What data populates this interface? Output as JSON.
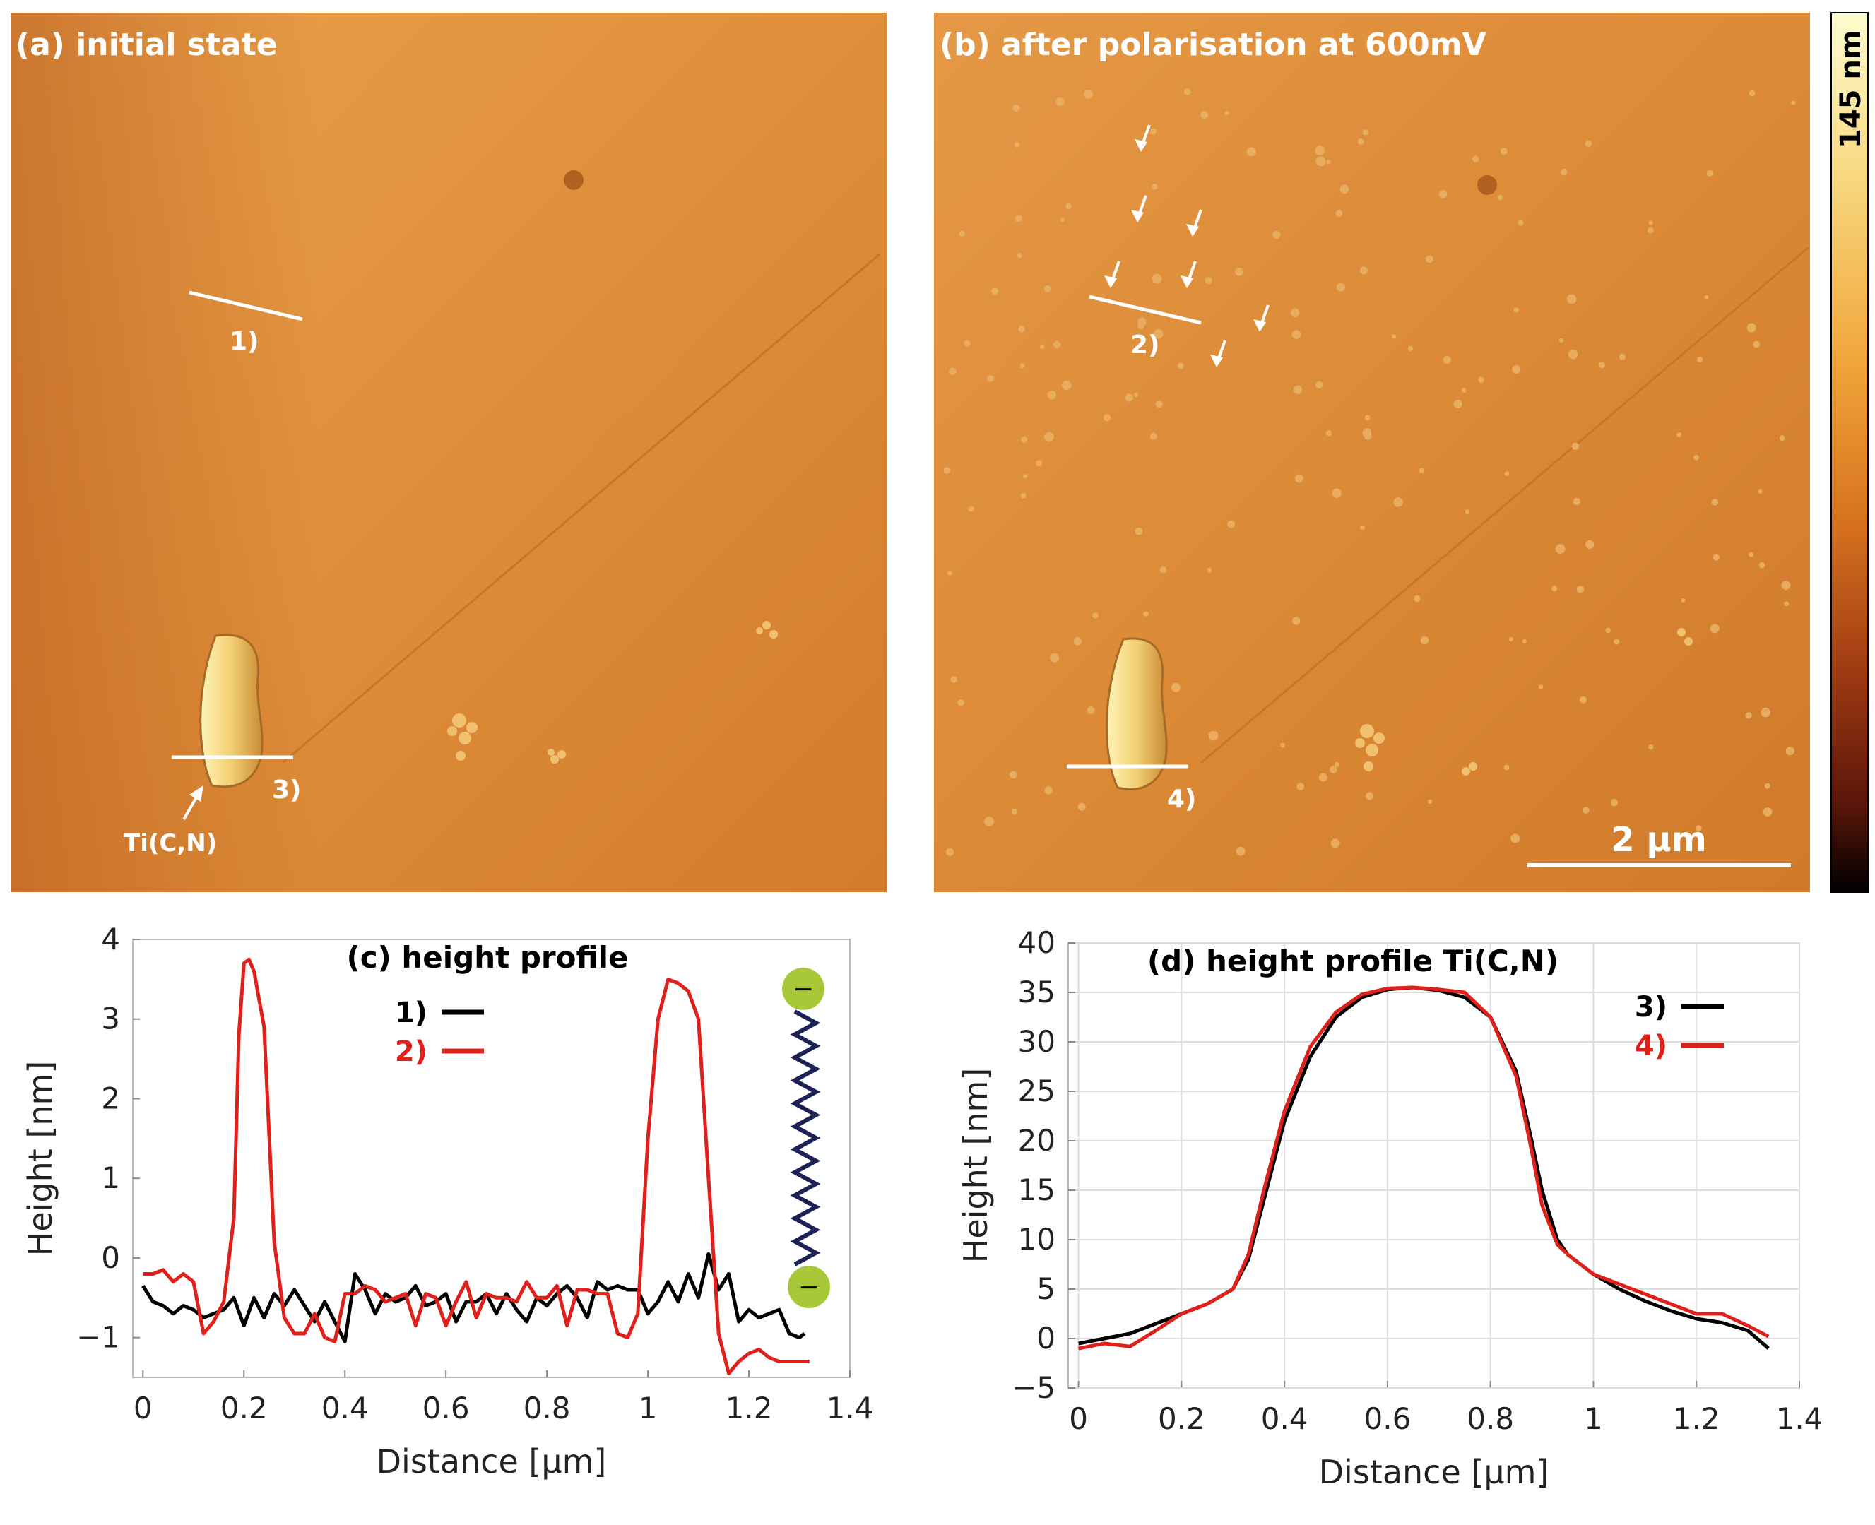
{
  "figure": {
    "colors": {
      "afm_light": "#e59b45",
      "afm_mid": "#d98a34",
      "afm_dark": "#b6601c",
      "profile_1": "#000000",
      "profile_2": "#e0201b",
      "molecule_ball": "#a8c83a",
      "molecule_chain": "#1c2255",
      "scale_line": "#ffffff"
    }
  },
  "afm": {
    "panel_a": {
      "title": "(a) initial state",
      "line_labels": [
        "1)",
        "3)"
      ],
      "particle_label": "Ti(C,N)"
    },
    "panel_b": {
      "title": "(b) after polarisation at 600mV",
      "line_labels": [
        "2)",
        "4)"
      ],
      "scale_bar": "2 µm"
    },
    "colorbar": {
      "label": "145 nm",
      "stops": [
        "#fdfcd0",
        "#f7d57a",
        "#f0a43a",
        "#d6721e",
        "#9e3a12",
        "#5a160a",
        "#000000"
      ]
    }
  },
  "chart_data": [
    {
      "type": "line",
      "title": "(c) height profile",
      "xlabel": "Distance [µm]",
      "ylabel": "Height [nm]",
      "xlim": [
        -0.02,
        1.4
      ],
      "ylim": [
        -1.5,
        4.0
      ],
      "xticks": [
        0,
        0.2,
        0.4,
        0.6,
        0.8,
        1,
        1.2,
        1.4
      ],
      "yticks": [
        -1,
        0,
        1,
        2,
        3,
        4
      ],
      "xtick_labels": [
        "0",
        "0.2",
        "0.4",
        "0.6",
        "0.8",
        "1",
        "1.2",
        "1.4"
      ],
      "ytick_labels": [
        "−1",
        "0",
        "1",
        "2",
        "3",
        "4"
      ],
      "legend": "top-right",
      "series": [
        {
          "name": "1)",
          "color": "#000000",
          "x": [
            0,
            0.02,
            0.04,
            0.06,
            0.08,
            0.1,
            0.12,
            0.14,
            0.16,
            0.18,
            0.2,
            0.22,
            0.24,
            0.26,
            0.28,
            0.3,
            0.32,
            0.34,
            0.36,
            0.38,
            0.4,
            0.42,
            0.44,
            0.46,
            0.48,
            0.5,
            0.52,
            0.54,
            0.56,
            0.58,
            0.6,
            0.62,
            0.64,
            0.66,
            0.68,
            0.7,
            0.72,
            0.74,
            0.76,
            0.78,
            0.8,
            0.82,
            0.84,
            0.86,
            0.88,
            0.9,
            0.92,
            0.94,
            0.96,
            0.98,
            1.0,
            1.02,
            1.04,
            1.06,
            1.08,
            1.1,
            1.12,
            1.14,
            1.16,
            1.18,
            1.2,
            1.22,
            1.24,
            1.26,
            1.28,
            1.3,
            1.31
          ],
          "y": [
            -0.35,
            -0.55,
            -0.6,
            -0.7,
            -0.6,
            -0.65,
            -0.75,
            -0.7,
            -0.65,
            -0.5,
            -0.85,
            -0.5,
            -0.75,
            -0.45,
            -0.6,
            -0.4,
            -0.6,
            -0.8,
            -0.55,
            -0.8,
            -1.05,
            -0.2,
            -0.4,
            -0.7,
            -0.45,
            -0.55,
            -0.5,
            -0.35,
            -0.6,
            -0.55,
            -0.45,
            -0.8,
            -0.55,
            -0.55,
            -0.45,
            -0.7,
            -0.45,
            -0.65,
            -0.8,
            -0.5,
            -0.6,
            -0.45,
            -0.35,
            -0.5,
            -0.75,
            -0.3,
            -0.4,
            -0.35,
            -0.4,
            -0.4,
            -0.7,
            -0.55,
            -0.3,
            -0.55,
            -0.2,
            -0.5,
            0.05,
            -0.4,
            -0.2,
            -0.8,
            -0.65,
            -0.75,
            -0.7,
            -0.65,
            -0.95,
            -1.0,
            -0.95
          ]
        },
        {
          "name": "2)",
          "color": "#e0201b",
          "x": [
            0,
            0.02,
            0.04,
            0.06,
            0.08,
            0.1,
            0.12,
            0.14,
            0.16,
            0.18,
            0.19,
            0.2,
            0.21,
            0.22,
            0.24,
            0.26,
            0.28,
            0.3,
            0.32,
            0.34,
            0.36,
            0.38,
            0.4,
            0.42,
            0.44,
            0.46,
            0.48,
            0.5,
            0.52,
            0.54,
            0.56,
            0.58,
            0.6,
            0.62,
            0.64,
            0.66,
            0.68,
            0.7,
            0.72,
            0.74,
            0.76,
            0.78,
            0.8,
            0.82,
            0.84,
            0.86,
            0.88,
            0.9,
            0.92,
            0.94,
            0.96,
            0.98,
            1.0,
            1.02,
            1.04,
            1.06,
            1.08,
            1.1,
            1.12,
            1.14,
            1.16,
            1.18,
            1.2,
            1.22,
            1.24,
            1.26,
            1.28,
            1.3,
            1.32
          ],
          "y": [
            -0.2,
            -0.2,
            -0.15,
            -0.3,
            -0.2,
            -0.3,
            -0.95,
            -0.8,
            -0.55,
            0.5,
            2.8,
            3.7,
            3.75,
            3.6,
            2.9,
            0.2,
            -0.75,
            -0.95,
            -0.95,
            -0.7,
            -1.0,
            -1.05,
            -0.45,
            -0.45,
            -0.35,
            -0.4,
            -0.55,
            -0.5,
            -0.45,
            -0.85,
            -0.45,
            -0.5,
            -0.85,
            -0.55,
            -0.3,
            -0.75,
            -0.45,
            -0.5,
            -0.5,
            -0.55,
            -0.3,
            -0.5,
            -0.5,
            -0.35,
            -0.85,
            -0.4,
            -0.4,
            -0.45,
            -0.45,
            -0.95,
            -1.0,
            -0.7,
            1.5,
            3.0,
            3.5,
            3.45,
            3.35,
            3.0,
            1.0,
            -0.95,
            -1.45,
            -1.3,
            -1.2,
            -1.15,
            -1.25,
            -1.3,
            -1.3,
            -1.3,
            -1.3
          ]
        }
      ]
    },
    {
      "type": "line",
      "title": "(d) height profile Ti(C,N)",
      "xlabel": "Distance [µm]",
      "ylabel": "Height [nm]",
      "xlim": [
        -0.02,
        1.4
      ],
      "ylim": [
        -5,
        40
      ],
      "xticks": [
        0,
        0.2,
        0.4,
        0.6,
        0.8,
        1,
        1.2,
        1.4
      ],
      "yticks": [
        -5,
        0,
        5,
        10,
        15,
        20,
        25,
        30,
        35,
        40
      ],
      "xtick_labels": [
        "0",
        "0.2",
        "0.4",
        "0.6",
        "0.8",
        "1",
        "1.2",
        "1.4"
      ],
      "ytick_labels": [
        "−5",
        "0",
        "5",
        "10",
        "15",
        "20",
        "25",
        "30",
        "35",
        "40"
      ],
      "legend": "top-right",
      "series": [
        {
          "name": "3)",
          "color": "#000000",
          "x": [
            0,
            0.05,
            0.1,
            0.15,
            0.2,
            0.25,
            0.3,
            0.33,
            0.36,
            0.4,
            0.45,
            0.5,
            0.55,
            0.6,
            0.65,
            0.7,
            0.75,
            0.8,
            0.85,
            0.88,
            0.9,
            0.93,
            0.95,
            1.0,
            1.05,
            1.1,
            1.15,
            1.2,
            1.25,
            1.3,
            1.34
          ],
          "y": [
            -0.5,
            0,
            0.5,
            1.5,
            2.5,
            3.5,
            5,
            8,
            14,
            22,
            28.5,
            32.5,
            34.5,
            35.3,
            35.5,
            35.2,
            34.5,
            32.5,
            27,
            20,
            15,
            10,
            8.5,
            6.5,
            5,
            3.8,
            2.8,
            2,
            1.6,
            0.8,
            -1
          ]
        },
        {
          "name": "4)",
          "color": "#e0201b",
          "x": [
            0,
            0.05,
            0.1,
            0.15,
            0.2,
            0.25,
            0.3,
            0.33,
            0.36,
            0.4,
            0.45,
            0.5,
            0.55,
            0.6,
            0.65,
            0.7,
            0.75,
            0.8,
            0.85,
            0.88,
            0.9,
            0.93,
            0.95,
            1.0,
            1.05,
            1.1,
            1.15,
            1.2,
            1.25,
            1.3,
            1.34
          ],
          "y": [
            -1,
            -0.5,
            -0.8,
            0.8,
            2.5,
            3.5,
            5,
            8.5,
            15,
            23,
            29.5,
            33,
            34.8,
            35.4,
            35.5,
            35.3,
            35,
            32.5,
            26.5,
            19,
            13.5,
            9.5,
            8.5,
            6.5,
            5.5,
            4.5,
            3.5,
            2.5,
            2.5,
            1.3,
            0.2
          ]
        }
      ]
    }
  ]
}
